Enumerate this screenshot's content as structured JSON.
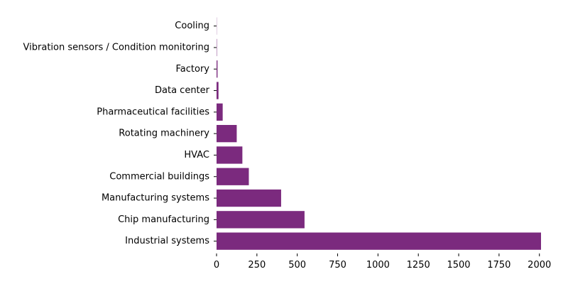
{
  "chart_data": {
    "type": "bar",
    "orientation": "horizontal",
    "title": "",
    "xlabel": "",
    "ylabel": "",
    "categories": [
      "Industrial systems",
      "Chip manufacturing",
      "Manufacturing systems",
      "Commercial buildings",
      "HVAC",
      "Rotating machinery",
      "Pharmaceutical facilities",
      "Data center",
      "Factory",
      "Vibration sensors / Condition monitoring",
      "Cooling"
    ],
    "values": [
      2010,
      545,
      400,
      200,
      160,
      125,
      38,
      12,
      6,
      2,
      1
    ],
    "xlim": [
      0,
      2010
    ],
    "xticks": [
      0,
      250,
      500,
      750,
      1000,
      1250,
      1500,
      1750,
      2000
    ],
    "xtick_labels": [
      "0",
      "250",
      "500",
      "750",
      "1000",
      "1250",
      "1500",
      "1750",
      "2000"
    ],
    "bar_color": "#7b2a7e",
    "grid": false,
    "legend": "none"
  }
}
